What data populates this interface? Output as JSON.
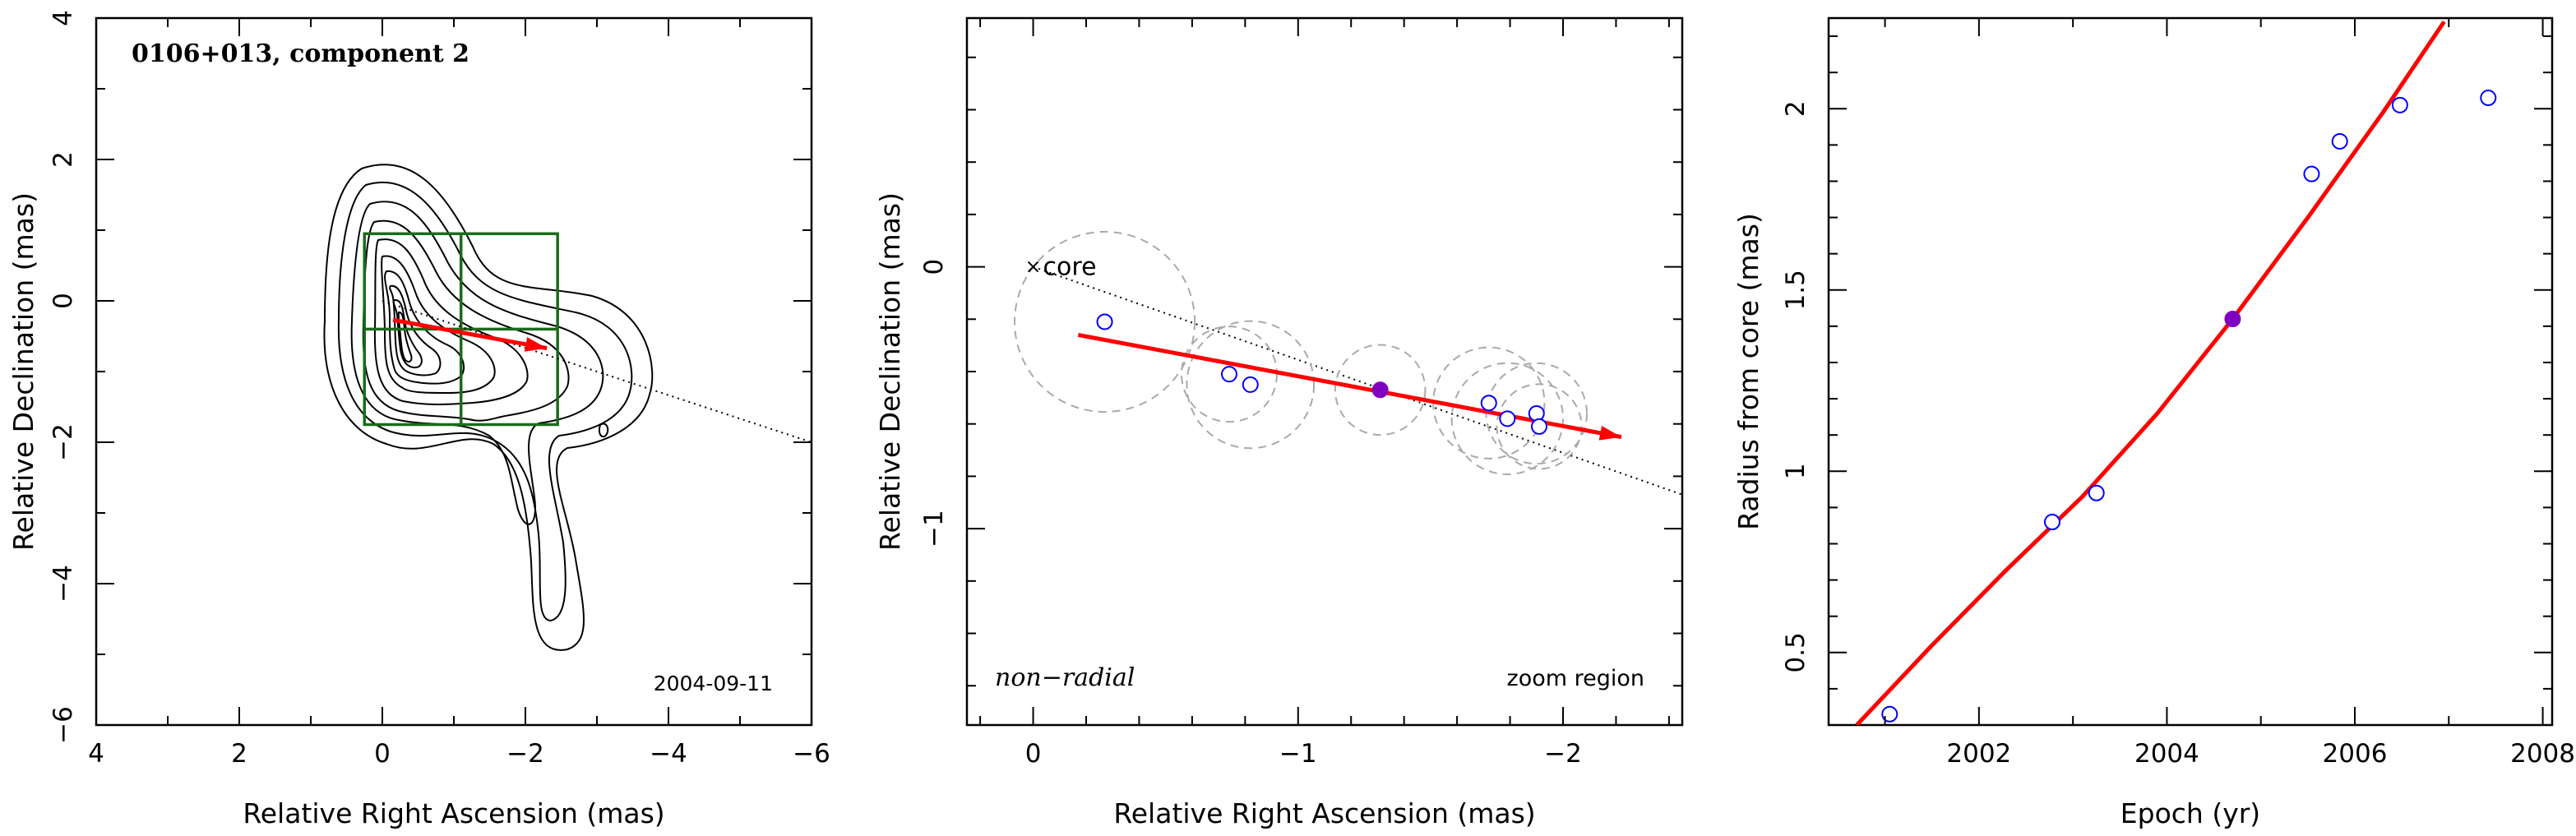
{
  "chart_data": [
    {
      "type": "contour",
      "title": "0106+013, component 2",
      "xlabel": "Relative Right Ascension (mas)",
      "ylabel": "Relative Declination (mas)",
      "xlim": [
        4,
        -6
      ],
      "ylim": [
        -6,
        4
      ],
      "xticks": [
        4,
        2,
        0,
        -2,
        -4,
        -6
      ],
      "yticks": [
        -6,
        -4,
        -2,
        0,
        2,
        4
      ],
      "epoch_label": "2004-09-11",
      "zoom_box": {
        "x_range": [
          0.25,
          -2.45
        ],
        "y_range": [
          -1.75,
          0.95
        ]
      },
      "velocity_vector": {
        "from": [
          -0.15,
          -0.27
        ],
        "to": [
          -2.3,
          -0.67
        ]
      },
      "radial_line": {
        "from": [
          0.0,
          0.0
        ],
        "to": [
          -6.0,
          -2.0
        ]
      },
      "colors": {
        "contour": "#000000",
        "box": "#1a6b1a",
        "vector": "#ff0000"
      }
    },
    {
      "type": "scatter",
      "xlabel": "Relative Right Ascension (mas)",
      "ylabel": "Relative Declination (mas)",
      "xlim": [
        0.25,
        -2.45
      ],
      "ylim": [
        -1.75,
        0.95
      ],
      "xticks": [
        0,
        -1,
        -2
      ],
      "yticks": [
        0,
        -1
      ],
      "core_label": "core",
      "motion_label": "non−radial",
      "region_label": "zoom region",
      "points": [
        {
          "x": -0.27,
          "y": -0.21,
          "r": 0.34
        },
        {
          "x": -0.74,
          "y": -0.41,
          "r": 0.18
        },
        {
          "x": -0.82,
          "y": -0.45,
          "r": 0.24
        },
        {
          "x": -1.31,
          "y": -0.47,
          "r": 0.17,
          "highlight": true
        },
        {
          "x": -1.72,
          "y": -0.52,
          "r": 0.21
        },
        {
          "x": -1.79,
          "y": -0.58,
          "r": 0.21
        },
        {
          "x": -1.9,
          "y": -0.56,
          "r": 0.19
        },
        {
          "x": -1.91,
          "y": -0.61,
          "r": 0.16
        }
      ],
      "velocity_vector": {
        "from": [
          -0.17,
          -0.26
        ],
        "to": [
          -2.22,
          -0.65
        ]
      },
      "radial_line": {
        "from": [
          0.0,
          0.0
        ],
        "to": [
          -2.45,
          -0.87
        ]
      },
      "colors": {
        "point": "#0000ff",
        "highlight": "#8000c0",
        "vector": "#ff0000",
        "circle": "#aaaaaa"
      }
    },
    {
      "type": "scatter",
      "xlabel": "Epoch (yr)",
      "ylabel": "Radius from core (mas)",
      "xlim": [
        2000.4,
        2008.1
      ],
      "ylim": [
        0.3,
        2.25
      ],
      "xticks": [
        2002,
        2004,
        2006,
        2008
      ],
      "xtick_labels": [
        "2002",
        "2004",
        "2006",
        "2008"
      ],
      "yticks": [
        0.5,
        1,
        1.5,
        2
      ],
      "ytick_labels": [
        "0.5",
        "1",
        "1.5",
        "2"
      ],
      "points": [
        {
          "x": 2001.05,
          "y": 0.33
        },
        {
          "x": 2002.78,
          "y": 0.86
        },
        {
          "x": 2003.25,
          "y": 0.94
        },
        {
          "x": 2004.7,
          "y": 1.42,
          "highlight": true
        },
        {
          "x": 2005.54,
          "y": 1.82
        },
        {
          "x": 2005.84,
          "y": 1.91
        },
        {
          "x": 2006.48,
          "y": 2.01
        },
        {
          "x": 2007.42,
          "y": 2.03
        }
      ],
      "fit_curve": {
        "x": [
          2000.7,
          2001.5,
          2002.3,
          2003.1,
          2003.9,
          2004.7,
          2005.5,
          2006.3,
          2006.95
        ],
        "y": [
          0.3,
          0.52,
          0.73,
          0.93,
          1.16,
          1.42,
          1.7,
          1.99,
          2.24
        ]
      },
      "colors": {
        "point": "#0000ff",
        "highlight": "#8000c0",
        "fit": "#ff0000"
      }
    }
  ]
}
